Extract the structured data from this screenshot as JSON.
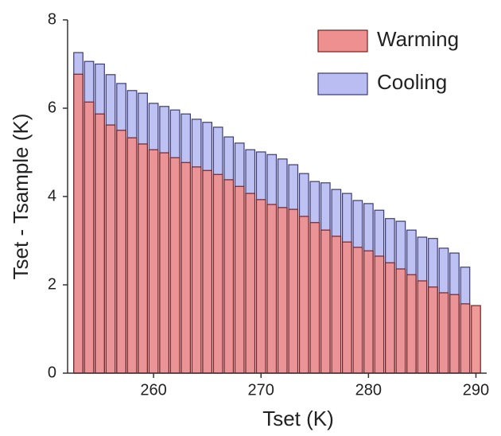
{
  "chart_data": {
    "type": "bar",
    "xlabel": "Tset (K)",
    "ylabel": "Tset - Tsample (K)",
    "x": [
      253,
      254,
      255,
      256,
      257,
      258,
      259,
      260,
      261,
      262,
      263,
      264,
      265,
      266,
      267,
      268,
      269,
      270,
      271,
      272,
      273,
      274,
      275,
      276,
      277,
      278,
      279,
      280,
      281,
      282,
      283,
      284,
      285,
      286,
      287,
      288,
      289,
      290
    ],
    "series": [
      {
        "name": "Cooling",
        "color": "#b9bdf2",
        "edge": "#3a3a78",
        "values": [
          7.26,
          7.06,
          7.0,
          6.76,
          6.56,
          6.4,
          6.34,
          6.11,
          6.04,
          5.96,
          5.87,
          5.75,
          5.68,
          5.57,
          5.35,
          5.21,
          5.06,
          5.01,
          4.95,
          4.85,
          4.72,
          4.52,
          4.34,
          4.31,
          4.16,
          4.07,
          3.91,
          3.84,
          3.69,
          3.5,
          3.44,
          3.24,
          3.08,
          3.05,
          2.83,
          2.72,
          2.4,
          null
        ]
      },
      {
        "name": "Warming",
        "color": "#ef9090",
        "edge": "#7a2020",
        "values": [
          6.77,
          6.14,
          5.87,
          5.62,
          5.5,
          5.33,
          5.19,
          5.06,
          4.99,
          4.88,
          4.77,
          4.67,
          4.59,
          4.5,
          4.38,
          4.23,
          4.07,
          3.93,
          3.82,
          3.75,
          3.71,
          3.55,
          3.41,
          3.24,
          3.1,
          2.97,
          2.85,
          2.77,
          2.65,
          2.5,
          2.36,
          2.23,
          2.09,
          1.95,
          1.82,
          1.78,
          1.57,
          1.53
        ]
      }
    ],
    "legend_order": [
      1,
      0
    ],
    "xlim": [
      252,
      291
    ],
    "xticks": [
      260,
      270,
      280,
      290
    ],
    "ylim": [
      0,
      8
    ],
    "yticks": [
      0,
      2,
      4,
      6,
      8
    ],
    "legend": "upper right",
    "grid": false
  }
}
